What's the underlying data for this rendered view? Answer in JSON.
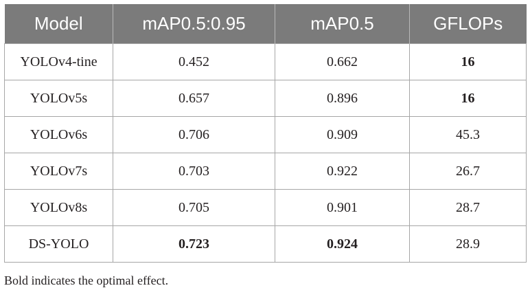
{
  "table": {
    "headers": [
      "Model",
      "mAP0.5:0.95",
      "mAP0.5",
      "GFLOPs"
    ],
    "rows": [
      {
        "model": "YOLOv4-tine",
        "map5095": "0.452",
        "map05": "0.662",
        "gflops": "16"
      },
      {
        "model": "YOLOv5s",
        "map5095": "0.657",
        "map05": "0.896",
        "gflops": "16"
      },
      {
        "model": "YOLOv6s",
        "map5095": "0.706",
        "map05": "0.909",
        "gflops": "45.3"
      },
      {
        "model": "YOLOv7s",
        "map5095": "0.703",
        "map05": "0.922",
        "gflops": "26.7"
      },
      {
        "model": "YOLOv8s",
        "map5095": "0.705",
        "map05": "0.901",
        "gflops": "28.7"
      },
      {
        "model": "DS-YOLO",
        "map5095": "0.723",
        "map05": "0.924",
        "gflops": "28.9"
      }
    ]
  },
  "footnote": "Bold indicates the optimal effect."
}
